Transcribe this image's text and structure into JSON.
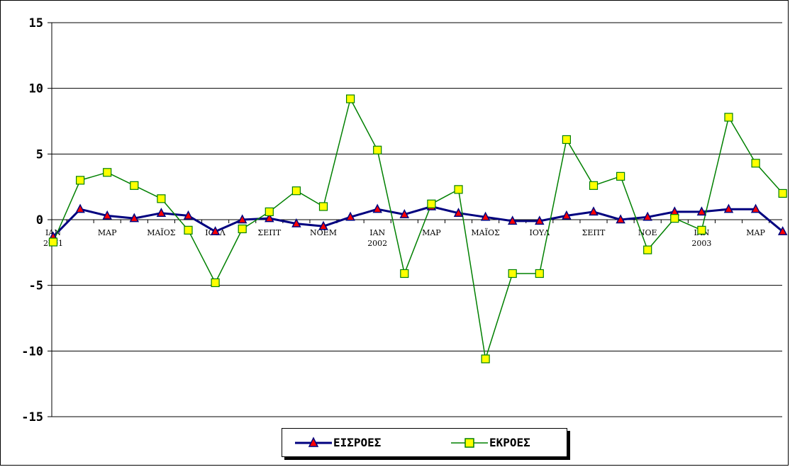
{
  "chart_data": {
    "type": "line",
    "ylim": [
      -15,
      15
    ],
    "yticks": [
      15,
      10,
      5,
      0,
      -5,
      -10,
      -15
    ],
    "grid": true,
    "legend_position": "bottom",
    "x_tick_labels": [
      {
        "index": 0,
        "lines": [
          "ΙΑΝ",
          "2001"
        ]
      },
      {
        "index": 2,
        "lines": [
          "ΜΑΡ"
        ]
      },
      {
        "index": 4,
        "lines": [
          "ΜΑΪΟΣ"
        ]
      },
      {
        "index": 6,
        "lines": [
          "ΙΟΥΛ"
        ]
      },
      {
        "index": 8,
        "lines": [
          "ΣΕΠΤ"
        ]
      },
      {
        "index": 10,
        "lines": [
          "ΝΟΕΜ"
        ]
      },
      {
        "index": 12,
        "lines": [
          "ΙΑΝ",
          "2002"
        ]
      },
      {
        "index": 14,
        "lines": [
          "ΜΑΡ"
        ]
      },
      {
        "index": 16,
        "lines": [
          "ΜΑΪΟΣ"
        ]
      },
      {
        "index": 18,
        "lines": [
          "ΙΟΥΛ"
        ]
      },
      {
        "index": 20,
        "lines": [
          "ΣΕΠΤ"
        ]
      },
      {
        "index": 22,
        "lines": [
          "ΝΟΕ"
        ]
      },
      {
        "index": 24,
        "lines": [
          "ΙΑΝ",
          "2003"
        ]
      },
      {
        "index": 26,
        "lines": [
          "ΜΑΡ"
        ]
      }
    ],
    "series": [
      {
        "name": "ΕΙΣΡΟΕΣ",
        "color": "#00007f",
        "marker": "triangle",
        "marker_color": "#ff0000",
        "values": [
          -1.3,
          0.8,
          0.3,
          0.1,
          0.5,
          0.3,
          -0.9,
          0.0,
          0.1,
          -0.3,
          -0.5,
          0.2,
          0.8,
          0.4,
          1.0,
          0.5,
          0.2,
          -0.1,
          -0.1,
          0.3,
          0.6,
          0.0,
          0.2,
          0.6,
          0.6,
          0.8,
          0.8,
          -0.9
        ]
      },
      {
        "name": "ΕΚΡΟΕΣ",
        "color": "#008000",
        "marker": "square",
        "marker_color": "#ffff00",
        "values": [
          -1.7,
          3.0,
          3.6,
          2.6,
          1.6,
          -0.8,
          -4.8,
          -0.7,
          0.6,
          2.2,
          1.0,
          9.2,
          5.3,
          -4.1,
          1.2,
          2.3,
          -10.6,
          -4.1,
          -4.1,
          6.1,
          2.6,
          3.3,
          -2.3,
          0.1,
          -0.8,
          7.8,
          4.3,
          2.0
        ]
      }
    ]
  },
  "legend": {
    "items": [
      "ΕΙΣΡΟΕΣ",
      "ΕΚΡΟΕΣ"
    ]
  }
}
